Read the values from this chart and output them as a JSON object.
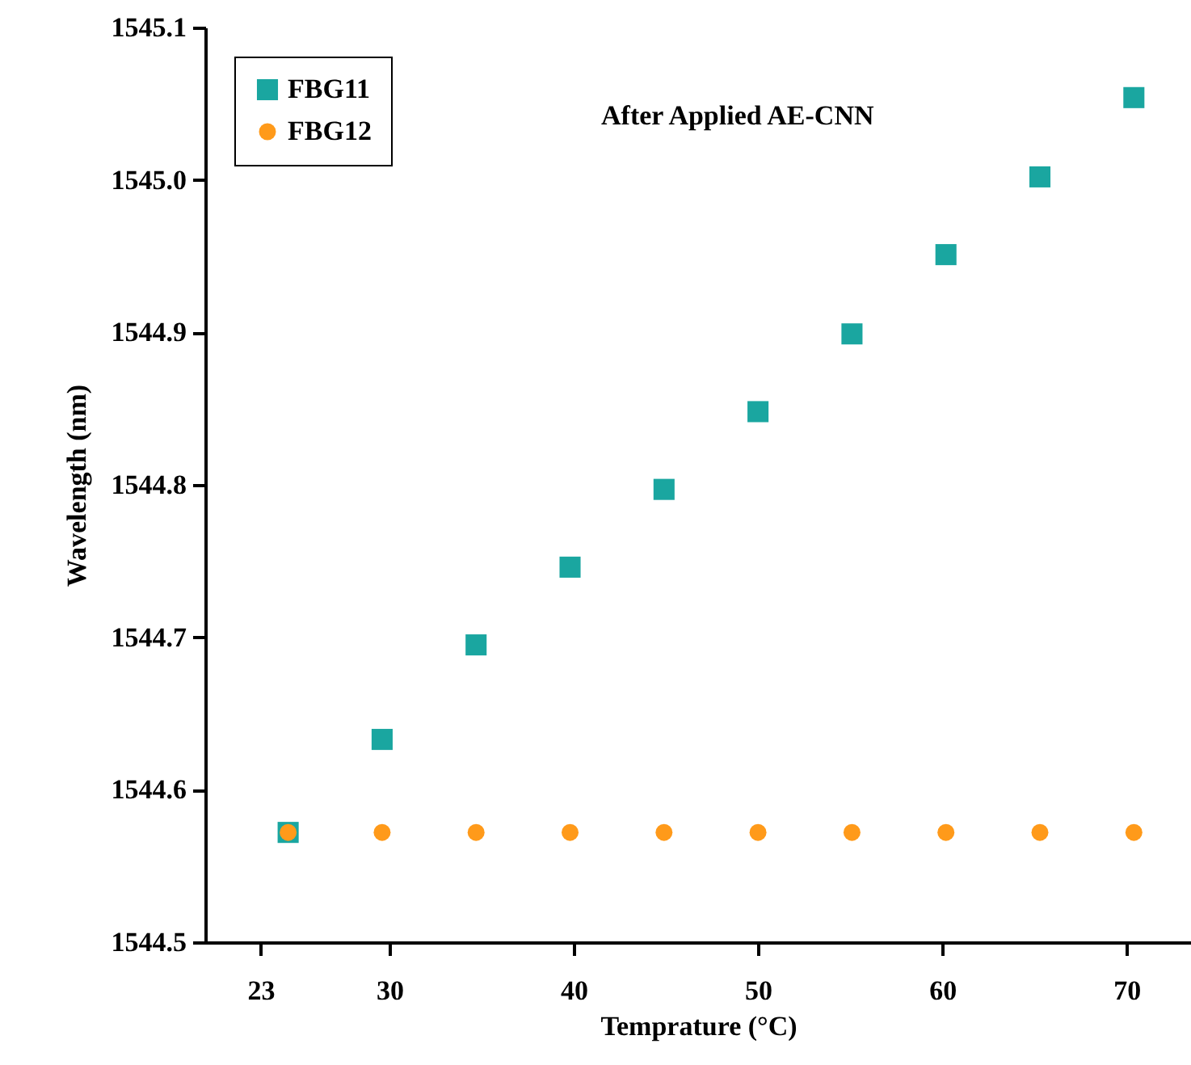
{
  "chart_data": {
    "type": "scatter",
    "xlabel": "Temprature (°C)",
    "ylabel": "Wavelength  (nm)",
    "annotations": [
      "After Applied AE-CNN"
    ],
    "x": [
      24.5,
      29.6,
      34.7,
      39.8,
      44.9,
      50.0,
      55.1,
      60.2,
      65.3,
      70.4
    ],
    "series": [
      {
        "name": "FBG11",
        "color": "#1aa6a0",
        "marker": "square",
        "values": [
          1544.572,
          1544.633,
          1544.695,
          1544.746,
          1544.797,
          1544.848,
          1544.899,
          1544.951,
          1545.002,
          1545.054
        ]
      },
      {
        "name": "FBG12",
        "color": "#ff9a1a",
        "marker": "circle",
        "values": [
          1544.572,
          1544.572,
          1544.572,
          1544.572,
          1544.572,
          1544.572,
          1544.572,
          1544.572,
          1544.572,
          1544.572
        ]
      }
    ],
    "xlim": [
      20,
      73.5
    ],
    "xticks": [
      23,
      30,
      40,
      50,
      60,
      70
    ],
    "ylim": [
      1544.5,
      1545.1
    ],
    "yticks": [
      {
        "value": 1544.5,
        "label": "1544.5"
      },
      1544.6,
      1544.7,
      1544.8,
      1544.9,
      {
        "value": 1545.0,
        "label": "1545.0"
      },
      1545.1
    ],
    "legend": "top left",
    "grid": false
  }
}
